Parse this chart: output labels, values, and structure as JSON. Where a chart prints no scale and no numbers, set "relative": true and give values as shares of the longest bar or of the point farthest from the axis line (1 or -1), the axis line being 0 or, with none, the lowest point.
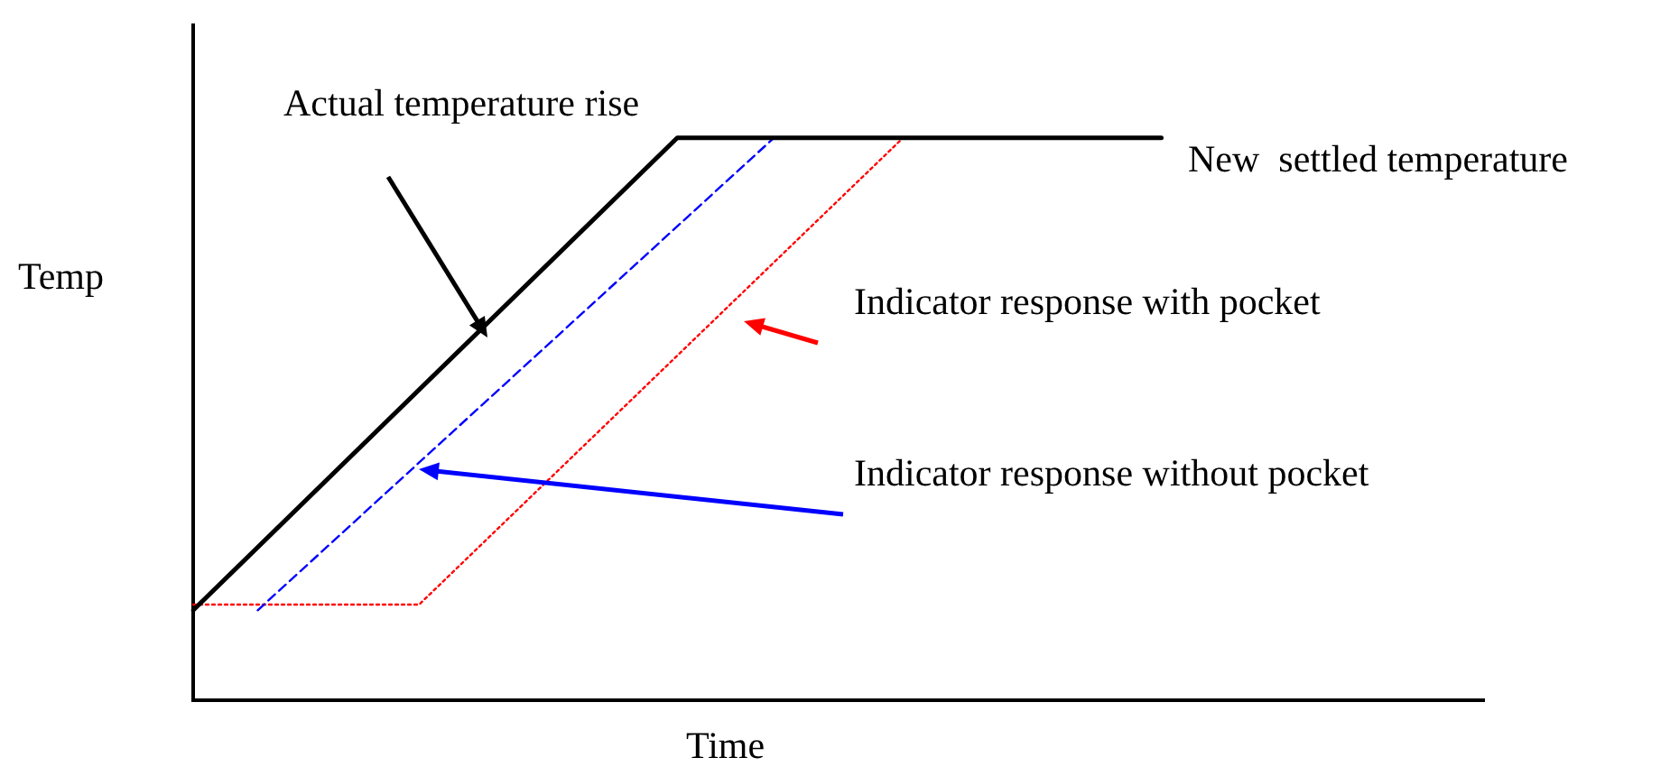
{
  "chart_data": {
    "type": "line",
    "relative": true,
    "xlabel": "Time",
    "ylabel": "Temp",
    "legend": false,
    "marker": "none",
    "grid": false,
    "categories": [
      null,
      null,
      null,
      null,
      null,
      null,
      null,
      null,
      null,
      null,
      null,
      null,
      null,
      null,
      null,
      null,
      null,
      null,
      null,
      null,
      null,
      null,
      null,
      null,
      null,
      null,
      null,
      null,
      null,
      null,
      null,
      null,
      null,
      null,
      null,
      null,
      null,
      null,
      null,
      null,
      null
    ],
    "series": [
      {
        "color": "#000000",
        "line_style": "solid",
        "values": [
          0.16,
          null,
          null,
          null,
          null,
          null,
          null,
          null,
          null,
          null,
          null,
          null,
          null,
          null,
          null,
          1,
          null,
          null,
          null,
          null,
          null,
          null,
          null,
          null,
          null,
          null,
          null,
          null,
          null,
          null,
          1,
          null,
          null,
          null,
          null,
          null,
          null,
          null,
          null,
          null,
          null
        ]
      },
      {
        "color": "#0000ff",
        "line_style": "dashed",
        "values": [
          null,
          null,
          0.16,
          null,
          null,
          null,
          null,
          null,
          null,
          null,
          null,
          null,
          null,
          null,
          null,
          null,
          null,
          null,
          1,
          null,
          null,
          null,
          null,
          null,
          null,
          null,
          null,
          null,
          null,
          null,
          null,
          null,
          null,
          null,
          null,
          null,
          null,
          null,
          null,
          null,
          null
        ]
      },
      {
        "color": "#ff0000",
        "line_style": "dotted",
        "values": [
          0.17,
          null,
          null,
          null,
          null,
          null,
          null,
          0.17,
          null,
          null,
          null,
          null,
          null,
          null,
          null,
          null,
          null,
          null,
          null,
          null,
          null,
          null,
          1,
          null,
          null,
          null,
          null,
          null,
          null,
          null,
          null,
          null,
          null,
          null,
          null,
          null,
          null,
          null,
          null,
          null,
          null
        ]
      }
    ],
    "annotations": [
      "Actual temperature rise",
      "New  settled temperature",
      "Indicator response with pocket",
      "Indicator response without pocket"
    ]
  }
}
